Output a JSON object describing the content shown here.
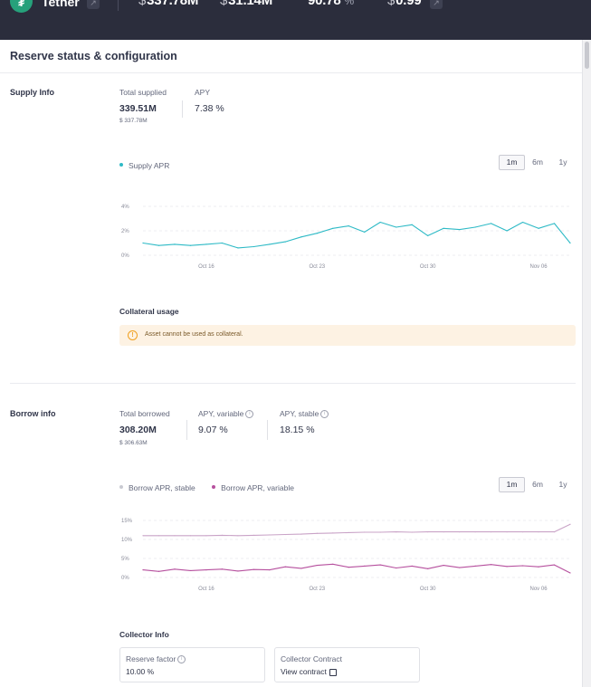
{
  "header": {
    "asset_icon": "tether-icon",
    "asset_name": "Tether",
    "stats": [
      {
        "prefix": "$",
        "value": "337.78M"
      },
      {
        "prefix": "$",
        "value": "31.14M"
      },
      {
        "prefix": "",
        "value": "90.78",
        "suffix": "%"
      },
      {
        "prefix": "$",
        "value": "0.99"
      }
    ]
  },
  "page": {
    "title": "Reserve status & configuration"
  },
  "supply": {
    "label": "Supply Info",
    "total_supplied_label": "Total supplied",
    "total_supplied_value": "339.51M",
    "total_supplied_usd": "$ 337.78M",
    "apy_label": "APY",
    "apy_value": "7.38 %",
    "legend": "Supply APR",
    "timeframes": [
      "1m",
      "6m",
      "1y"
    ],
    "selected_timeframe": "1m",
    "collateral_heading": "Collateral usage",
    "collateral_warning": "Asset cannot be used as collateral."
  },
  "borrow": {
    "label": "Borrow info",
    "total_borrowed_label": "Total borrowed",
    "total_borrowed_value": "308.20M",
    "total_borrowed_usd": "$ 306.63M",
    "apy_variable_label": "APY, variable",
    "apy_variable_value": "9.07 %",
    "apy_stable_label": "APY, stable",
    "apy_stable_value": "18.15 %",
    "legend_stable": "Borrow APR, stable",
    "legend_variable": "Borrow APR, variable",
    "timeframes": [
      "1m",
      "6m",
      "1y"
    ],
    "selected_timeframe": "1m"
  },
  "collector": {
    "heading": "Collector Info",
    "reserve_factor_label": "Reserve factor",
    "reserve_factor_value": "10.00 %",
    "contract_label": "Collector Contract",
    "contract_link": "View contract"
  },
  "colors": {
    "supply_line": "#2ebac6",
    "borrow_variable": "#b6509e",
    "borrow_stable": "#c9a3c7",
    "topbar": "#2b2d3c",
    "warning_bg": "#fdf2e3"
  },
  "chart_data": [
    {
      "type": "line",
      "x": [
        "Oct 12",
        "Oct 13",
        "Oct 14",
        "Oct 15",
        "Oct 16",
        "Oct 17",
        "Oct 18",
        "Oct 19",
        "Oct 20",
        "Oct 21",
        "Oct 22",
        "Oct 23",
        "Oct 24",
        "Oct 25",
        "Oct 26",
        "Oct 27",
        "Oct 28",
        "Oct 29",
        "Oct 30",
        "Oct 31",
        "Nov 01",
        "Nov 02",
        "Nov 03",
        "Nov 04",
        "Nov 05",
        "Nov 06",
        "Nov 07",
        "Nov 08"
      ],
      "xticks": [
        "Oct 16",
        "Oct 23",
        "Oct 30",
        "Nov 06"
      ],
      "yticks": [
        "0%",
        "2%",
        "4%"
      ],
      "ylim": [
        0,
        4
      ],
      "series": [
        {
          "name": "Supply APR",
          "values": [
            1.0,
            0.8,
            0.9,
            0.8,
            0.9,
            1.0,
            0.6,
            0.7,
            0.9,
            1.1,
            1.5,
            1.8,
            2.2,
            2.4,
            1.9,
            2.7,
            2.3,
            2.5,
            1.6,
            2.2,
            2.1,
            2.3,
            2.6,
            2.0,
            2.7,
            2.2,
            2.6,
            1.0
          ]
        }
      ]
    },
    {
      "type": "line",
      "x": [
        "Oct 12",
        "Oct 13",
        "Oct 14",
        "Oct 15",
        "Oct 16",
        "Oct 17",
        "Oct 18",
        "Oct 19",
        "Oct 20",
        "Oct 21",
        "Oct 22",
        "Oct 23",
        "Oct 24",
        "Oct 25",
        "Oct 26",
        "Oct 27",
        "Oct 28",
        "Oct 29",
        "Oct 30",
        "Oct 31",
        "Nov 01",
        "Nov 02",
        "Nov 03",
        "Nov 04",
        "Nov 05",
        "Nov 06",
        "Nov 07",
        "Nov 08"
      ],
      "xticks": [
        "Oct 16",
        "Oct 23",
        "Oct 30",
        "Nov 06"
      ],
      "yticks": [
        "0%",
        "5%",
        "10%",
        "15%"
      ],
      "ylim": [
        0,
        15
      ],
      "series": [
        {
          "name": "Borrow APR, stable",
          "values": [
            11.0,
            11.0,
            11.0,
            11.0,
            11.0,
            11.1,
            11.0,
            11.1,
            11.2,
            11.3,
            11.4,
            11.6,
            11.7,
            11.8,
            11.9,
            11.9,
            12.0,
            11.9,
            12.0,
            12.0,
            12.0,
            12.0,
            12.0,
            12.0,
            12.0,
            12.0,
            12.0,
            14.0
          ]
        },
        {
          "name": "Borrow APR, variable",
          "values": [
            2.0,
            1.6,
            2.2,
            1.8,
            2.0,
            2.2,
            1.7,
            2.1,
            2.0,
            2.8,
            2.4,
            3.2,
            3.5,
            2.7,
            3.0,
            3.3,
            2.5,
            3.0,
            2.3,
            3.2,
            2.6,
            3.0,
            3.4,
            2.9,
            3.1,
            2.8,
            3.3,
            1.2
          ]
        }
      ]
    }
  ]
}
